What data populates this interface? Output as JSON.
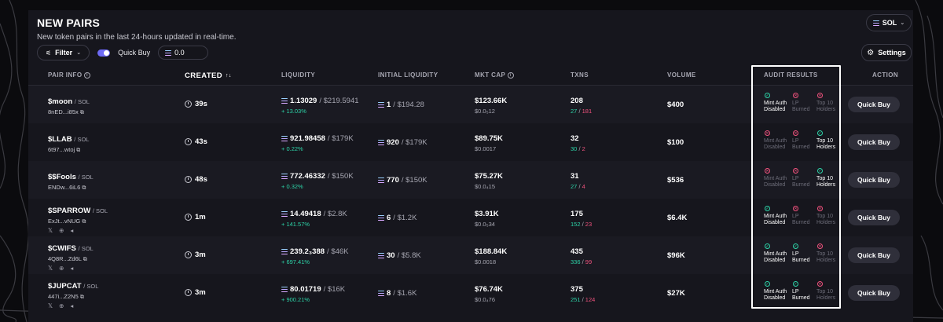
{
  "header": {
    "title": "NEW PAIRS",
    "subtitle": "New token pairs in the last 24-hours updated in real-time.",
    "chain_selector": "SOL"
  },
  "toolbar": {
    "filter_label": "Filter",
    "quick_buy_label": "Quick Buy",
    "quick_buy_amount": "0.0",
    "settings_label": "Settings"
  },
  "columns": {
    "pair_info": "PAIR INFO",
    "created": "CREATED",
    "liquidity": "LIQUIDITY",
    "initial_liquidity": "INITIAL LIQUIDITY",
    "mkt_cap": "MKT CAP",
    "txns": "TXNS",
    "volume": "VOLUME",
    "audit_results": "AUDIT RESULTS",
    "action": "ACTION"
  },
  "audit_labels": {
    "mint": [
      "Mint Auth",
      "Disabled"
    ],
    "lp": [
      "LP",
      "Burned"
    ],
    "top10": [
      "Top 10",
      "Holders"
    ]
  },
  "rows": [
    {
      "symbol": "$moon",
      "chain": "SOL",
      "address": "8nED...i85x",
      "socials": "",
      "created": "39s",
      "liq_sol": "1.13029",
      "liq_usd": "$219.5941",
      "liq_change": "+ 13.03%",
      "init_sol": "1",
      "init_usd": "$194.28",
      "mcap": "$123.66K",
      "mcap_sub": "$0.0₅12",
      "txns": "208",
      "buys": "27",
      "sells": "181",
      "volume": "$400",
      "mint": true,
      "lp": false,
      "top10": false,
      "action": "Quick Buy"
    },
    {
      "symbol": "$LLAB",
      "chain": "SOL",
      "address": "6t97...wtoj",
      "socials": "",
      "created": "43s",
      "liq_sol": "921.98458",
      "liq_usd": "$179K",
      "liq_change": "+ 0.22%",
      "init_sol": "920",
      "init_usd": "$179K",
      "mcap": "$89.75K",
      "mcap_sub": "$0.0017",
      "txns": "32",
      "buys": "30",
      "sells": "2",
      "volume": "$100",
      "mint": false,
      "lp": false,
      "top10": true,
      "action": "Quick Buy"
    },
    {
      "symbol": "$$Fools",
      "chain": "SOL",
      "address": "ENDw...6iL6",
      "socials": "",
      "created": "48s",
      "liq_sol": "772.46332",
      "liq_usd": "$150K",
      "liq_change": "+ 0.32%",
      "init_sol": "770",
      "init_usd": "$150K",
      "mcap": "$75.27K",
      "mcap_sub": "$0.0₄15",
      "txns": "31",
      "buys": "27",
      "sells": "4",
      "volume": "$536",
      "mint": false,
      "lp": false,
      "top10": true,
      "action": "Quick Buy"
    },
    {
      "symbol": "$SPARROW",
      "chain": "SOL",
      "address": "ExJt...vNUG",
      "socials": "𝕏 ⊕ ◂",
      "created": "1m",
      "liq_sol": "14.49418",
      "liq_usd": "$2.8K",
      "liq_change": "+ 141.57%",
      "init_sol": "6",
      "init_usd": "$1.2K",
      "mcap": "$3.91K",
      "mcap_sub": "$0.0₅34",
      "txns": "175",
      "buys": "152",
      "sells": "23",
      "volume": "$6.4K",
      "mint": true,
      "lp": false,
      "top10": false,
      "action": "Quick Buy"
    },
    {
      "symbol": "$CWIFS",
      "chain": "SOL",
      "address": "4Q8R...Zd6L",
      "socials": "𝕏 ⊕ ◂",
      "created": "3m",
      "liq_sol": "239.2₃388",
      "liq_usd": "$46K",
      "liq_change": "+ 697.41%",
      "init_sol": "30",
      "init_usd": "$5.8K",
      "mcap": "$188.84K",
      "mcap_sub": "$0.0018",
      "txns": "435",
      "buys": "336",
      "sells": "99",
      "volume": "$96K",
      "mint": true,
      "lp": true,
      "top10": false,
      "action": "Quick Buy"
    },
    {
      "symbol": "$JUPCAT",
      "chain": "SOL",
      "address": "447i...Z2N5",
      "socials": "𝕏 ⊕ ◂",
      "created": "3m",
      "liq_sol": "80.01719",
      "liq_usd": "$16K",
      "liq_change": "+ 900.21%",
      "init_sol": "8",
      "init_usd": "$1.6K",
      "mcap": "$76.74K",
      "mcap_sub": "$0.0₄76",
      "txns": "375",
      "buys": "251",
      "sells": "124",
      "volume": "$27K",
      "mint": true,
      "lp": true,
      "top10": false,
      "action": "Quick Buy"
    }
  ]
}
